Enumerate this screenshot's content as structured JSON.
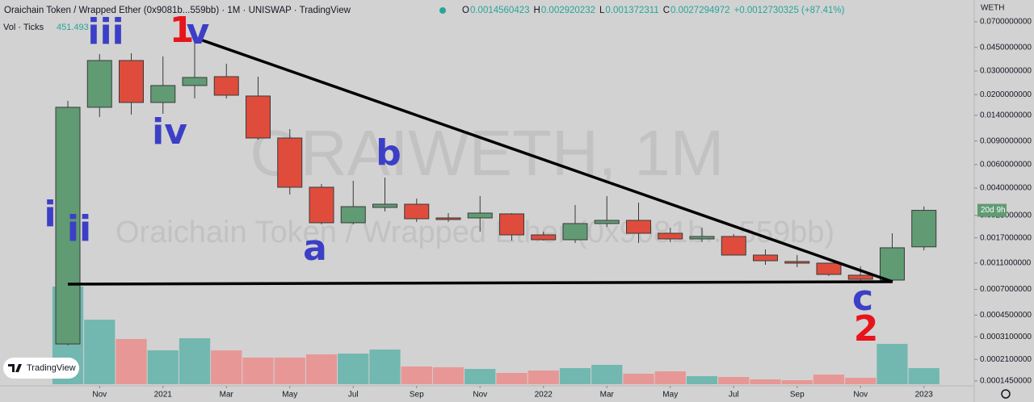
{
  "chart_data": {
    "type": "candlestick",
    "title": "Oraichain Token / Wrapped Ether (0x9081b...559bb) · 1M · UNISWAP · TradingView",
    "ohlc_labels": [
      "O",
      "H",
      "L",
      "C"
    ],
    "change": "+0.0012730325 (+87.41%)",
    "volume_label": "Vol · Ticks",
    "currency": "WETH",
    "countdown": "20d 9h",
    "watermark": "ORAIWETH, 1M",
    "watermark_subtitle": "Oraichain Token / Wrapped Ether (0x9081b... 559bb)",
    "logo": "TradingView",
    "annotations": [
      {
        "text": "i",
        "color": "#3c3fc6"
      },
      {
        "text": "ii",
        "color": "#3c3fc6"
      },
      {
        "text": "iii",
        "color": "#3c3fc6"
      },
      {
        "text": "iv",
        "color": "#3c3fc6"
      },
      {
        "text": "1",
        "color": "#e8141c"
      },
      {
        "text": "v",
        "color": "#3c3fc6"
      },
      {
        "text": "a",
        "color": "#3c3fc6"
      },
      {
        "text": "b",
        "color": "#3c3fc6"
      },
      {
        "text": "c",
        "color": "#3c3fc6"
      },
      {
        "text": "2",
        "color": "#e8141c"
      }
    ],
    "categories": [
      null,
      "Nov",
      null,
      "2021",
      null,
      "Mar",
      null,
      "May",
      null,
      "Jul",
      null,
      "Sep",
      null,
      "Nov",
      null,
      "2022",
      null,
      "Mar",
      null,
      "May",
      null,
      "Jul",
      null,
      "Sep",
      null,
      "Nov",
      null,
      "2023"
    ],
    "open": [
      0.000274,
      0.01607,
      0.03594,
      0.01746,
      0.02337,
      0.02723,
      0.01951,
      0.00947,
      0.004061,
      0.002204,
      0.002869,
      0.003032,
      0.002395,
      0.002395,
      0.002568,
      0.001789,
      0.001646,
      0.002174,
      0.002297,
      0.001839,
      0.001669,
      0.001741,
      0.001264,
      0.001131,
      0.0011,
      0.000894,
      0.000822,
      0.0014560423
    ],
    "high": [
      0.01795,
      0.04015,
      0.04073,
      0.03853,
      0.05086,
      0.034,
      0.02723,
      0.01104,
      0.004291,
      0.004538,
      0.004798,
      0.003342,
      0.002603,
      0.003485,
      0.002603,
      0.001891,
      0.002991,
      0.003485,
      0.003118,
      0.002027,
      0.002027,
      0.001815,
      0.001394,
      0.001264,
      0.0011,
      0.001041,
      0.001839,
      0.002920232
    ],
    "low": [
      0.000267,
      0.0136,
      0.01418,
      0.01437,
      0.01872,
      0.01872,
      0.00921,
      0.003584,
      0.002143,
      0.002143,
      0.002676,
      0.002236,
      0.002236,
      0.001891,
      0.001623,
      0.001623,
      0.001557,
      0.002056,
      0.001557,
      0.001578,
      0.001578,
      0.001264,
      0.001069,
      0.001027,
      0.000882,
      0.000811,
      0.000799,
      0.001372311
    ],
    "close": [
      0.01607,
      0.03594,
      0.01746,
      0.02337,
      0.02685,
      0.01978,
      0.00947,
      0.004061,
      0.002204,
      0.002908,
      0.003032,
      0.002362,
      0.00233,
      0.002603,
      0.001789,
      0.001646,
      0.002174,
      0.002297,
      0.001839,
      0.001669,
      0.001741,
      0.001264,
      0.001147,
      0.0011,
      0.000906,
      0.000833,
      0.001433,
      0.0027294972
    ],
    "volume": [
      2735,
      1808,
      1266,
      949,
      1288,
      949,
      746,
      746,
      836,
      859,
      972,
      497,
      475,
      429,
      316,
      384,
      452,
      542,
      294,
      362,
      226,
      203,
      136,
      113,
      271,
      181,
      1130,
      451.493
    ],
    "up_color": "#609b74",
    "down_color": "#df4c3c",
    "volume_up_color": "#72b8b0",
    "volume_down_color": "#e79795",
    "log_scale": true,
    "grid": false,
    "ylim": [
      0.0001332,
      0.1018
    ],
    "yticks": [
      {
        "value": 0.07,
        "label": "0.0700000000"
      },
      {
        "value": 0.045,
        "label": "0.0450000000"
      },
      {
        "value": 0.03,
        "label": "0.0300000000"
      },
      {
        "value": 0.02,
        "label": "0.0200000000"
      },
      {
        "value": 0.014,
        "label": "0.0140000000"
      },
      {
        "value": 0.009,
        "label": "0.0090000000"
      },
      {
        "value": 0.006,
        "label": "0.0060000000"
      },
      {
        "value": 0.004,
        "label": "0.0040000000"
      },
      {
        "value": 0.0025,
        "label": "0.0025000000"
      },
      {
        "value": 0.0017,
        "label": "0.0017000000"
      },
      {
        "value": 0.0011,
        "label": "0.0011000000"
      },
      {
        "value": 0.0007,
        "label": "0.0007000000"
      },
      {
        "value": 0.00045,
        "label": "0.0004500000"
      },
      {
        "value": 0.00031,
        "label": "0.0003100000"
      },
      {
        "value": 0.00021,
        "label": "0.0002100000"
      },
      {
        "value": 0.000145,
        "label": "0.0001450000"
      }
    ]
  }
}
